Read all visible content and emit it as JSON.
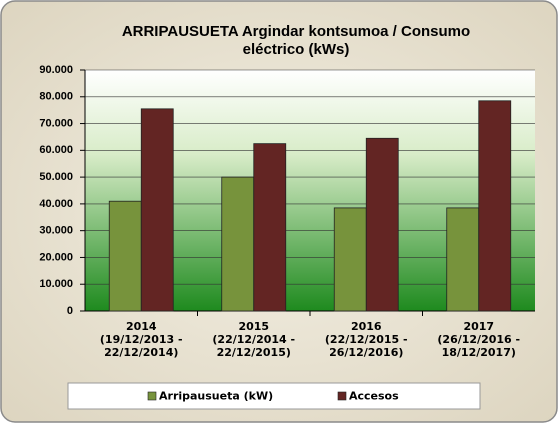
{
  "chart_data": {
    "type": "bar",
    "title": "ARRIPAUSUETA Argindar kontsumoa / Consumo eléctrico (kWs)",
    "categories": [
      "2014\n(19/12/2013 -\n22/12/2014)",
      "2015\n(22/12/2014 -\n22/12/2015)",
      "2016\n(22/12/2015 -\n26/12/2016)",
      "2017\n(26/12/2016 -\n18/12/2017)"
    ],
    "series": [
      {
        "name": "Arripausueta (kW)",
        "color": "#77933c",
        "values": [
          41000,
          50000,
          38500,
          38500
        ]
      },
      {
        "name": "Accesos",
        "color": "#632523",
        "values": [
          75500,
          62500,
          64500,
          78500
        ]
      }
    ],
    "ylim": [
      0,
      90000
    ],
    "yticks": [
      0,
      {
        "value": 10000,
        "label": "10.000"
      },
      {
        "value": 20000,
        "label": "20.000"
      },
      {
        "value": 30000,
        "label": "30.000"
      },
      {
        "value": 40000,
        "label": "40.000"
      },
      {
        "value": 50000,
        "label": "50.000"
      },
      {
        "value": 60000,
        "label": "60.000"
      },
      {
        "value": 70000,
        "label": "70.000"
      },
      {
        "value": 80000,
        "label": "80.000"
      },
      {
        "value": 90000,
        "label": "90.000"
      }
    ],
    "grid": true,
    "legend": "bottom"
  }
}
